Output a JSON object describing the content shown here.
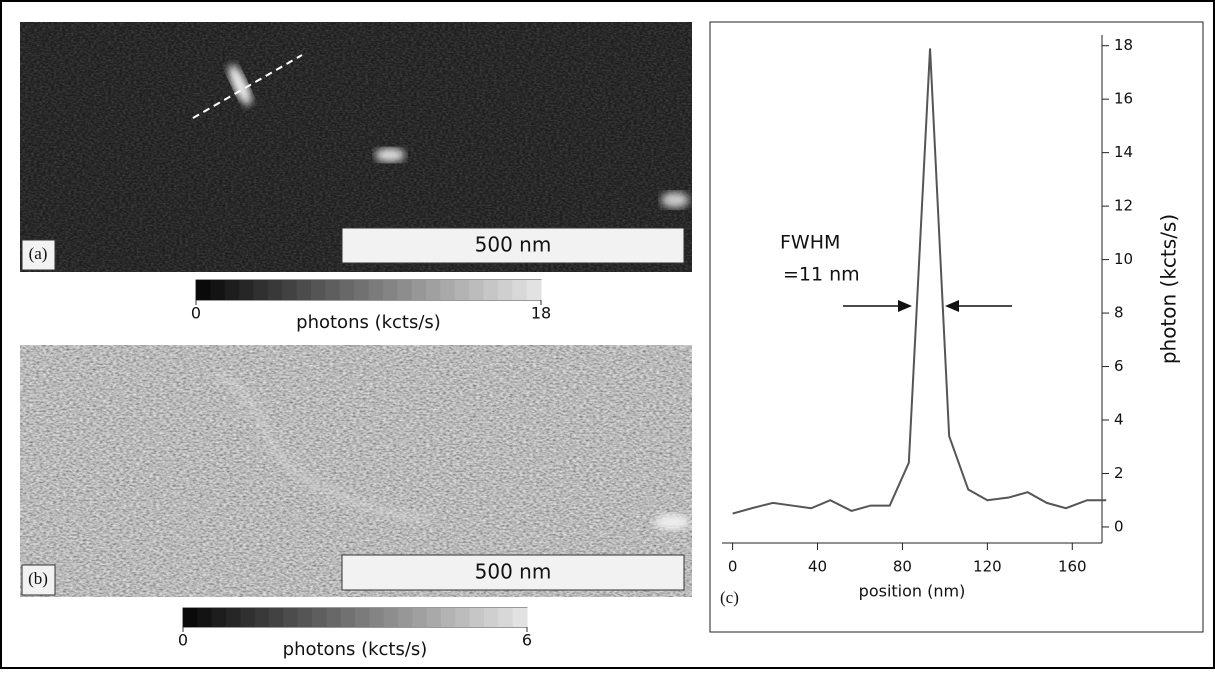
{
  "images": [
    {
      "label": "(a)",
      "scale_bar": "500 nm",
      "colorbar": {
        "label": "photons (kcts/s)",
        "lim": [
          0,
          18
        ],
        "ticks": [
          0,
          18
        ]
      }
    },
    {
      "label": "(b)",
      "scale_bar": "500 nm",
      "colorbar": {
        "label": "photons (kcts/s)",
        "lim": [
          0,
          6
        ],
        "ticks": [
          0,
          6
        ]
      }
    }
  ],
  "chart_data": {
    "type": "line",
    "panel_label": "(c)",
    "xlabel": "position (nm)",
    "ylabel": "photon (kcts/s)",
    "annotations": [
      "FWHM",
      "=11 nm"
    ],
    "x": [
      0,
      9,
      19,
      28,
      37,
      46,
      56,
      65,
      74,
      83,
      93,
      102,
      111,
      120,
      130,
      139,
      148,
      157,
      167,
      176
    ],
    "values": [
      0.5,
      0.7,
      0.9,
      0.8,
      0.7,
      1.0,
      0.6,
      0.8,
      0.8,
      2.4,
      17.9,
      3.4,
      1.4,
      1.0,
      1.1,
      1.3,
      0.9,
      0.7,
      1.0,
      1.0
    ],
    "color": "#555555",
    "xlim": [
      -5,
      174
    ],
    "xticks": [
      0,
      40,
      80,
      120,
      160
    ],
    "ylim": [
      -0.6,
      18.4
    ],
    "yticks": [
      0,
      2,
      4,
      6,
      8,
      10,
      12,
      14,
      16,
      18
    ]
  }
}
